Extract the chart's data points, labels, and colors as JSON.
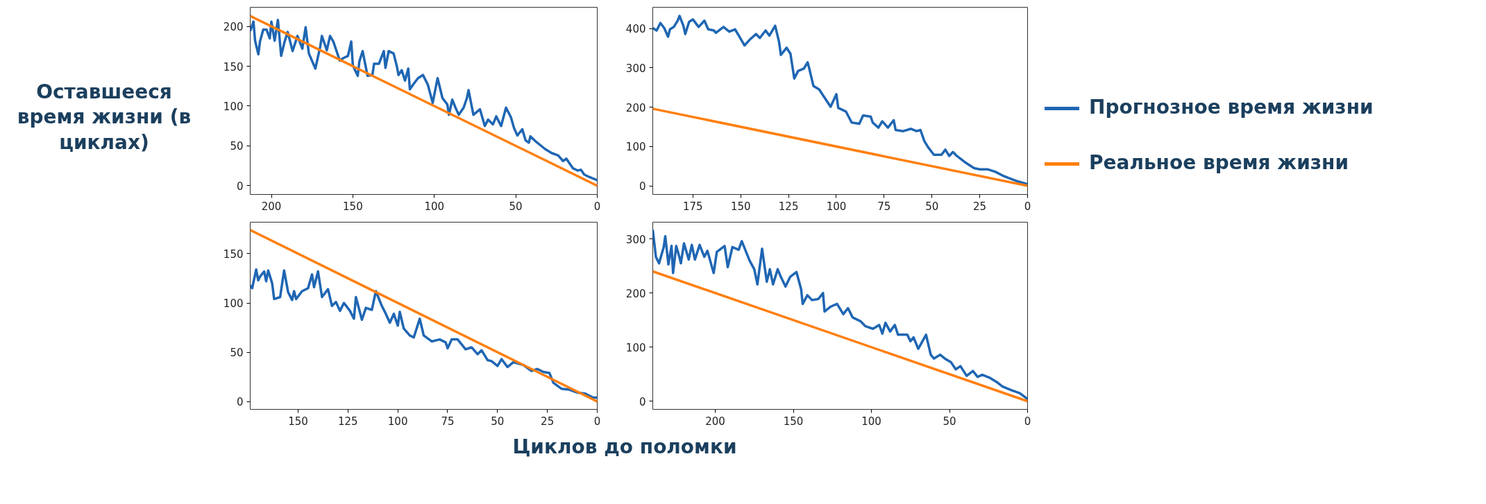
{
  "chart_data": [
    {
      "type": "line",
      "ylabel": "Оставшееся время жизни (в циклах)",
      "xlabel": "Циклов до поломки",
      "xlim": [
        213,
        0
      ],
      "ylim": [
        -11,
        224
      ],
      "xticks": [
        200,
        150,
        100,
        50,
        0
      ],
      "yticks": [
        0,
        50,
        100,
        150,
        200
      ],
      "grid": false,
      "series": [
        {
          "color": "#1f66b3",
          "x": [
            213,
            211,
            210,
            208,
            207,
            205,
            203,
            201,
            200,
            198,
            196,
            194,
            192,
            190,
            187,
            184,
            181,
            179,
            177,
            173,
            170,
            169,
            166,
            164,
            162,
            158,
            156,
            153,
            151,
            150,
            147,
            146,
            144,
            141,
            138,
            137,
            134,
            131,
            130,
            128,
            125,
            123,
            122,
            120,
            118,
            116,
            115,
            113,
            110,
            107,
            104,
            101,
            98,
            95,
            92,
            91,
            89,
            87,
            85,
            82,
            80,
            79,
            76,
            72,
            69,
            67,
            64,
            62,
            59,
            56,
            53,
            51,
            49,
            46,
            44,
            42,
            41,
            38,
            35,
            32,
            28,
            24,
            21,
            19,
            15,
            12,
            10,
            8,
            5,
            0
          ],
          "values": [
            194,
            206,
            182,
            165,
            181,
            196,
            196,
            185,
            206,
            182,
            208,
            163,
            180,
            193,
            169,
            188,
            172,
            199,
            166,
            147,
            175,
            188,
            170,
            188,
            181,
            157,
            160,
            163,
            181,
            151,
            138,
            156,
            169,
            138,
            139,
            153,
            153,
            169,
            148,
            169,
            166,
            150,
            139,
            145,
            132,
            147,
            121,
            127,
            135,
            139,
            127,
            104,
            135,
            110,
            102,
            89,
            108,
            98,
            89,
            98,
            110,
            120,
            89,
            96,
            75,
            83,
            77,
            87,
            75,
            98,
            86,
            72,
            63,
            71,
            57,
            54,
            62,
            56,
            51,
            46,
            41,
            38,
            31,
            34,
            22,
            19,
            20,
            14,
            11,
            7
          ]
        },
        {
          "color": "#ff7f0e",
          "x": [
            213,
            0
          ],
          "values": [
            213,
            0
          ]
        }
      ]
    },
    {
      "type": "line",
      "xlim": [
        196,
        0
      ],
      "ylim": [
        -22,
        454
      ],
      "xticks": [
        175,
        150,
        125,
        100,
        75,
        50,
        25,
        0
      ],
      "yticks": [
        0,
        100,
        200,
        300,
        400
      ],
      "grid": false,
      "series": [
        {
          "color": "#1f66b3",
          "x": [
            196,
            194,
            192,
            190,
            188,
            187,
            185,
            183,
            182,
            180,
            179,
            177,
            175,
            172,
            169,
            167,
            164,
            163,
            159,
            156,
            153,
            151,
            148,
            145,
            142,
            140,
            137,
            135,
            132,
            130,
            129,
            126,
            124,
            122,
            120,
            117,
            115,
            114,
            112,
            109,
            106,
            103,
            100,
            99,
            95,
            92,
            88,
            86,
            82,
            81,
            78,
            76,
            73,
            70,
            69,
            65,
            61,
            58,
            56,
            54,
            52,
            49,
            45,
            43,
            41,
            39,
            37,
            33,
            28,
            25,
            21,
            17,
            13,
            10,
            5,
            0
          ],
          "values": [
            401,
            395,
            414,
            401,
            379,
            398,
            404,
            420,
            432,
            407,
            386,
            417,
            423,
            404,
            420,
            398,
            395,
            389,
            404,
            392,
            398,
            382,
            357,
            373,
            386,
            376,
            395,
            382,
            407,
            367,
            333,
            351,
            336,
            273,
            292,
            298,
            314,
            295,
            254,
            245,
            223,
            201,
            233,
            198,
            189,
            161,
            158,
            179,
            176,
            161,
            148,
            164,
            148,
            167,
            142,
            139,
            145,
            139,
            142,
            114,
            98,
            79,
            79,
            92,
            76,
            86,
            76,
            61,
            45,
            42,
            42,
            36,
            26,
            20,
            11,
            4
          ]
        },
        {
          "color": "#ff7f0e",
          "x": [
            196,
            0
          ],
          "values": [
            196,
            0
          ]
        }
      ]
    },
    {
      "type": "line",
      "xlim": [
        174,
        0
      ],
      "ylim": [
        -8,
        182
      ],
      "xticks": [
        150,
        125,
        100,
        75,
        50,
        25,
        0
      ],
      "yticks": [
        0,
        50,
        100,
        150
      ],
      "grid": false,
      "series": [
        {
          "color": "#1f66b3",
          "x": [
            174,
            173,
            171,
            170,
            169,
            167,
            166,
            165,
            163,
            162,
            159,
            157,
            155,
            153,
            152,
            151,
            148,
            145,
            143,
            142,
            140,
            138,
            135,
            133,
            131,
            129,
            127,
            124,
            122,
            121,
            118,
            116,
            113,
            111,
            108,
            106,
            104,
            102,
            100,
            99,
            97,
            94,
            92,
            89,
            87,
            83,
            79,
            76,
            75,
            73,
            70,
            66,
            63,
            60,
            58,
            55,
            53,
            50,
            48,
            45,
            42,
            37,
            33,
            30,
            27,
            24,
            22,
            18,
            14,
            10,
            6,
            2,
            0
          ],
          "values": [
            118,
            115,
            134,
            123,
            127,
            132,
            122,
            133,
            120,
            104,
            106,
            133,
            111,
            103,
            112,
            104,
            112,
            115,
            129,
            116,
            132,
            106,
            114,
            97,
            101,
            92,
            100,
            92,
            84,
            106,
            83,
            95,
            93,
            112,
            97,
            89,
            80,
            89,
            77,
            91,
            74,
            67,
            65,
            84,
            67,
            61,
            63,
            60,
            54,
            63,
            63,
            53,
            55,
            48,
            52,
            42,
            41,
            36,
            43,
            35,
            40,
            37,
            31,
            33,
            30,
            29,
            19,
            13,
            12,
            9,
            8,
            4,
            4
          ]
        },
        {
          "color": "#ff7f0e",
          "x": [
            174,
            0
          ],
          "values": [
            174,
            0
          ]
        }
      ]
    },
    {
      "type": "line",
      "xlim": [
        240,
        0
      ],
      "ylim": [
        -15,
        331
      ],
      "xticks": [
        200,
        150,
        100,
        50,
        0
      ],
      "yticks": [
        0,
        100,
        200,
        300
      ],
      "grid": false,
      "legend": "right",
      "series": [
        {
          "name": "Прогнозное время жизни",
          "color": "#1f66b3",
          "x": [
            240,
            238,
            236,
            233,
            232,
            230,
            228,
            227,
            225,
            223,
            222,
            220,
            217,
            215,
            213,
            210,
            207,
            205,
            201,
            199,
            194,
            192,
            189,
            185,
            183,
            178,
            175,
            173,
            170,
            167,
            165,
            163,
            160,
            158,
            155,
            152,
            148,
            145,
            144,
            141,
            138,
            134,
            131,
            130,
            126,
            122,
            118,
            115,
            112,
            107,
            104,
            99,
            95,
            93,
            91,
            88,
            85,
            83,
            77,
            75,
            73,
            70,
            65,
            62,
            60,
            56,
            53,
            49,
            46,
            43,
            39,
            35,
            32,
            29,
            24,
            20,
            16,
            10,
            5,
            0
          ],
          "values": [
            317,
            267,
            255,
            285,
            305,
            253,
            287,
            237,
            287,
            267,
            255,
            292,
            262,
            289,
            262,
            289,
            267,
            278,
            237,
            276,
            287,
            248,
            285,
            280,
            296,
            260,
            244,
            216,
            282,
            221,
            244,
            216,
            244,
            230,
            212,
            230,
            239,
            207,
            180,
            196,
            187,
            189,
            200,
            166,
            175,
            180,
            161,
            172,
            155,
            148,
            139,
            134,
            141,
            125,
            145,
            129,
            141,
            123,
            123,
            111,
            118,
            97,
            123,
            86,
            79,
            86,
            79,
            72,
            59,
            65,
            47,
            56,
            45,
            49,
            43,
            36,
            27,
            20,
            15,
            4
          ]
        },
        {
          "name": "Реальное время жизни",
          "color": "#ff7f0e",
          "x": [
            240,
            0
          ],
          "values": [
            240,
            0
          ]
        }
      ]
    }
  ]
}
